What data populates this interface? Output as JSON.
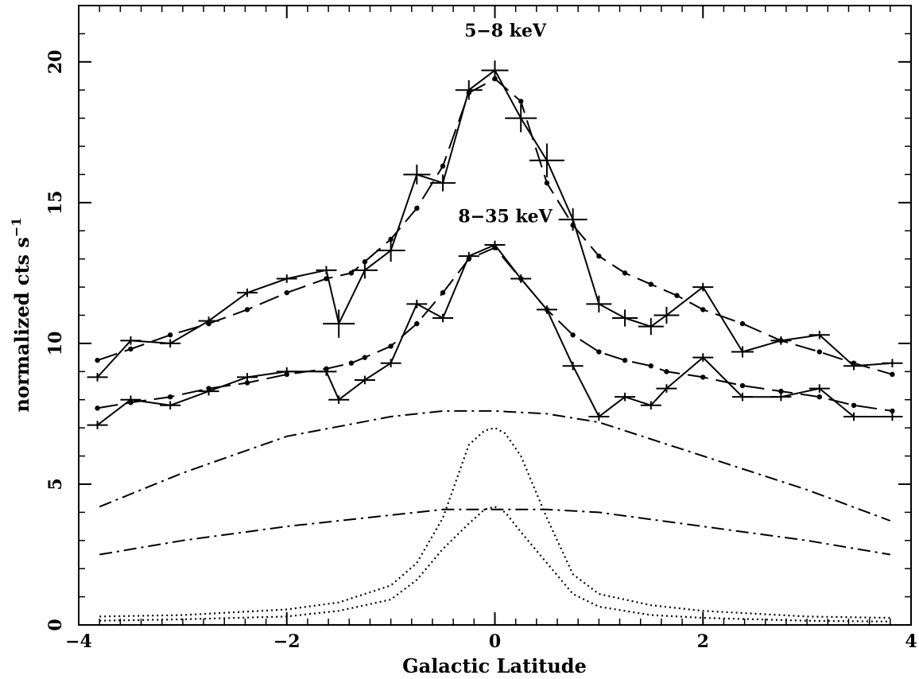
{
  "chart_data": {
    "type": "line",
    "title": "",
    "xlabel": "Galactic Latitude",
    "ylabel": "normalized cts s",
    "ylabel_exponent": "−1",
    "xlim": [
      -4,
      4
    ],
    "ylim": [
      0,
      22
    ],
    "xticks": [
      -4,
      -2,
      0,
      2,
      4
    ],
    "xtick_labels": [
      "−4",
      "−2",
      "0",
      "2",
      "4"
    ],
    "yticks": [
      0,
      5,
      10,
      15,
      20
    ],
    "ytick_labels": [
      "0",
      "5",
      "10",
      "15",
      "20"
    ],
    "grid": false,
    "annotations": [
      {
        "text": "5−8 keV",
        "x": 0.1,
        "y": 20.9
      },
      {
        "text": "8−35 keV",
        "x": 0.1,
        "y": 14.3
      }
    ],
    "series": [
      {
        "style": "solid-errorbars",
        "x": [
          -3.82,
          -3.5,
          -3.12,
          -2.75,
          -2.38,
          -2.0,
          -1.62,
          -1.5,
          -1.25,
          -1.0,
          -0.75,
          -0.5,
          -0.25,
          0.0,
          0.25,
          0.5,
          0.75,
          1.0,
          1.25,
          1.5,
          1.65,
          2.0,
          2.38,
          2.75,
          3.12,
          3.45,
          3.82
        ],
        "y": [
          8.8,
          10.1,
          10.0,
          10.8,
          11.8,
          12.3,
          12.6,
          10.7,
          12.6,
          13.3,
          16.0,
          15.7,
          19.0,
          19.7,
          18.0,
          16.5,
          14.4,
          11.4,
          10.9,
          10.6,
          11.0,
          12.0,
          9.7,
          10.1,
          10.3,
          9.2,
          9.3
        ],
        "yerr": [
          0.15,
          0.15,
          0.15,
          0.15,
          0.15,
          0.15,
          0.15,
          0.5,
          0.3,
          0.4,
          0.35,
          0.3,
          0.35,
          0.35,
          0.5,
          0.6,
          0.4,
          0.3,
          0.3,
          0.3,
          0.3,
          0.15,
          0.2,
          0.15,
          0.15,
          0.15,
          0.15
        ]
      },
      {
        "style": "dashed-dots",
        "x": [
          -3.82,
          -3.5,
          -3.12,
          -2.75,
          -2.38,
          -2.0,
          -1.62,
          -1.38,
          -1.25,
          -1.0,
          -0.75,
          -0.5,
          -0.25,
          0.0,
          0.25,
          0.5,
          0.75,
          1.0,
          1.25,
          1.5,
          1.75,
          2.0,
          2.38,
          2.75,
          3.12,
          3.45,
          3.82
        ],
        "y": [
          9.4,
          9.8,
          10.3,
          10.7,
          11.2,
          11.8,
          12.3,
          12.5,
          12.9,
          13.7,
          14.8,
          16.3,
          18.9,
          19.4,
          18.6,
          15.7,
          14.2,
          13.1,
          12.5,
          12.1,
          11.7,
          11.2,
          10.7,
          10.1,
          9.7,
          9.3,
          8.9
        ]
      },
      {
        "style": "solid-errorbars",
        "x": [
          -3.82,
          -3.5,
          -3.12,
          -2.75,
          -2.38,
          -2.0,
          -1.62,
          -1.5,
          -1.25,
          -1.0,
          -0.75,
          -0.5,
          -0.25,
          0.0,
          0.25,
          0.5,
          0.75,
          1.0,
          1.25,
          1.5,
          1.65,
          2.0,
          2.38,
          2.75,
          3.12,
          3.45,
          3.82
        ],
        "y": [
          7.1,
          8.0,
          7.8,
          8.3,
          8.8,
          9.0,
          9.0,
          8.0,
          8.7,
          9.3,
          11.4,
          10.9,
          13.1,
          13.5,
          12.3,
          11.2,
          9.2,
          7.4,
          8.1,
          7.8,
          8.4,
          9.5,
          8.1,
          8.1,
          8.4,
          7.4,
          7.4
        ]
      },
      {
        "style": "dashed-dots",
        "x": [
          -3.82,
          -3.5,
          -3.12,
          -2.75,
          -2.38,
          -2.0,
          -1.62,
          -1.38,
          -1.25,
          -1.0,
          -0.75,
          -0.5,
          -0.25,
          0.0,
          0.25,
          0.5,
          0.75,
          1.0,
          1.25,
          1.5,
          1.65,
          2.0,
          2.38,
          2.75,
          3.12,
          3.45,
          3.82
        ],
        "y": [
          7.7,
          7.9,
          8.1,
          8.4,
          8.6,
          8.9,
          9.1,
          9.3,
          9.5,
          9.9,
          10.7,
          11.8,
          13.0,
          13.4,
          12.3,
          11.2,
          10.3,
          9.7,
          9.4,
          9.2,
          9.0,
          8.8,
          8.5,
          8.3,
          8.1,
          7.8,
          7.6
        ]
      },
      {
        "style": "dash-dot",
        "x": [
          -3.8,
          -3.0,
          -2.0,
          -1.0,
          -0.5,
          0.0,
          0.5,
          1.0,
          2.0,
          3.0,
          3.8
        ],
        "y": [
          4.2,
          5.4,
          6.7,
          7.4,
          7.6,
          7.6,
          7.5,
          7.2,
          6.0,
          4.8,
          3.7
        ]
      },
      {
        "style": "dash-dot",
        "x": [
          -3.8,
          -3.0,
          -2.0,
          -1.0,
          -0.5,
          0.0,
          0.5,
          1.0,
          2.0,
          3.0,
          3.8
        ],
        "y": [
          2.5,
          3.0,
          3.5,
          3.9,
          4.1,
          4.1,
          4.1,
          4.0,
          3.5,
          3.0,
          2.5
        ]
      },
      {
        "style": "dotted",
        "x": [
          -3.8,
          -3.0,
          -2.0,
          -1.5,
          -1.0,
          -0.75,
          -0.5,
          -0.25,
          -0.1,
          0.0,
          0.1,
          0.25,
          0.5,
          0.75,
          1.0,
          1.5,
          2.0,
          3.0,
          3.8
        ],
        "y": [
          0.3,
          0.35,
          0.55,
          0.8,
          1.4,
          2.2,
          3.8,
          6.4,
          6.9,
          7.0,
          6.8,
          6.0,
          3.8,
          1.8,
          1.1,
          0.7,
          0.5,
          0.3,
          0.25
        ]
      },
      {
        "style": "dotted",
        "x": [
          -3.8,
          -3.0,
          -2.0,
          -1.5,
          -1.0,
          -0.75,
          -0.5,
          -0.25,
          -0.1,
          0.0,
          0.1,
          0.25,
          0.5,
          0.75,
          1.0,
          1.5,
          2.0,
          3.0,
          3.8
        ],
        "y": [
          0.15,
          0.2,
          0.3,
          0.5,
          0.9,
          1.6,
          2.7,
          3.6,
          4.1,
          4.2,
          4.0,
          3.3,
          2.2,
          1.1,
          0.65,
          0.35,
          0.25,
          0.15,
          0.12
        ]
      }
    ]
  }
}
